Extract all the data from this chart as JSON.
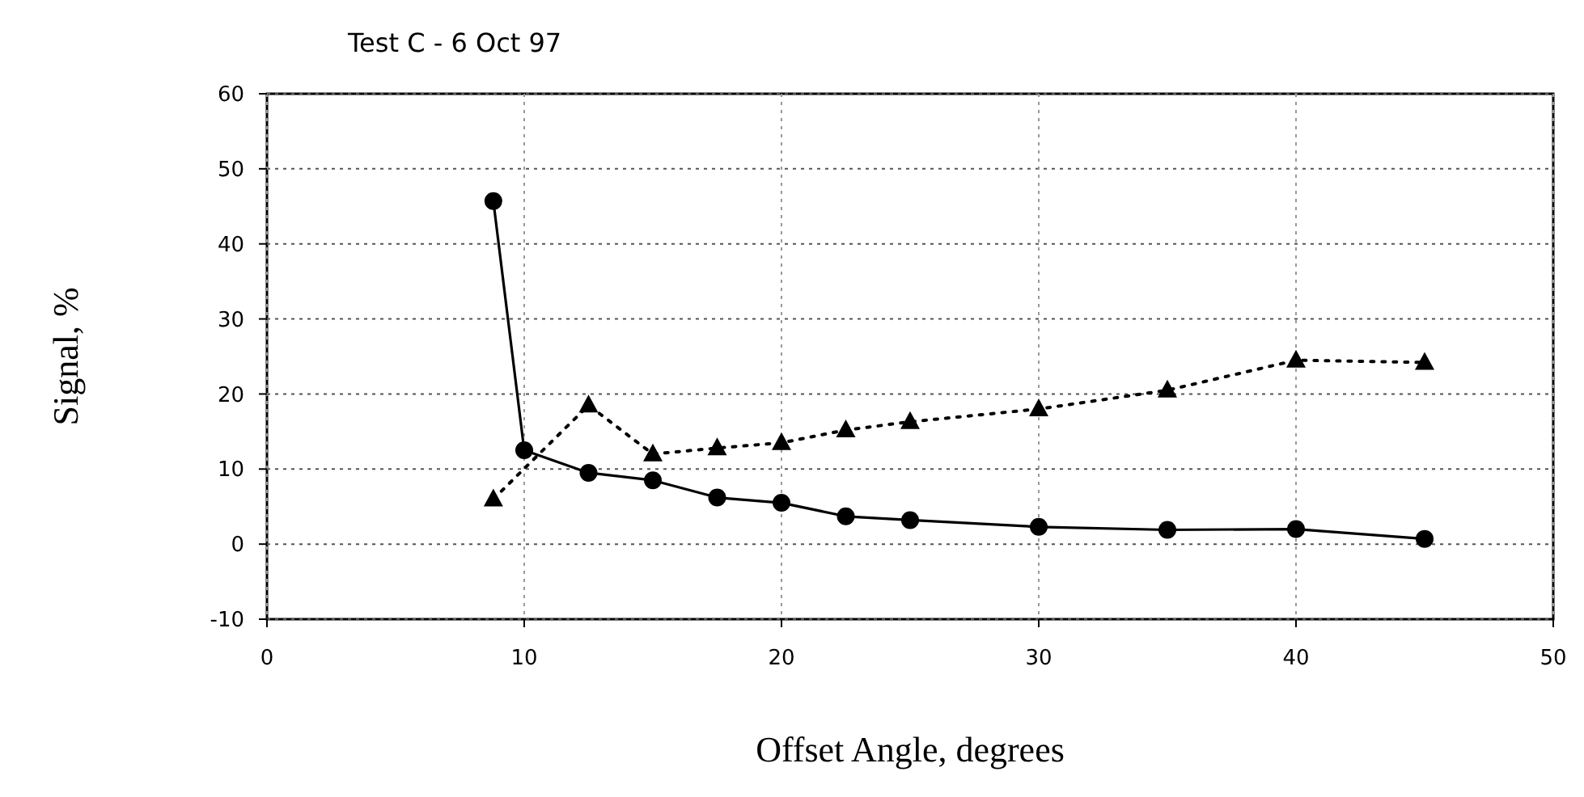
{
  "chart_data": {
    "type": "line",
    "title": "Test C - 6 Oct 97",
    "xlabel": "Offset Angle, degrees",
    "ylabel": "Signal, %",
    "xlim": [
      0,
      50
    ],
    "xticks": [
      0,
      10,
      20,
      30,
      40,
      50
    ],
    "ylim": [
      -10,
      60
    ],
    "yticks": [
      -10,
      0,
      10,
      20,
      30,
      40,
      50,
      60
    ],
    "grid": true,
    "series": [
      {
        "color": "#000000",
        "marker": "circle",
        "line_style": "solid",
        "x": [
          8.8,
          10,
          12.5,
          15,
          17.5,
          20,
          22.5,
          25,
          30,
          35,
          40,
          45
        ],
        "values": [
          45.7,
          12.5,
          9.5,
          8.5,
          6.2,
          5.5,
          3.7,
          3.2,
          2.3,
          1.9,
          2.0,
          0.7
        ]
      },
      {
        "color": "#000000",
        "marker": "triangle",
        "line_style": "dotted",
        "x": [
          8.8,
          10,
          12.5,
          15,
          17.5,
          20,
          22.5,
          25,
          30,
          35,
          40,
          45
        ],
        "values": [
          6,
          null,
          18.5,
          12,
          12.8,
          13.5,
          15.2,
          16.3,
          18,
          20.5,
          24.5,
          24.2
        ]
      }
    ]
  }
}
